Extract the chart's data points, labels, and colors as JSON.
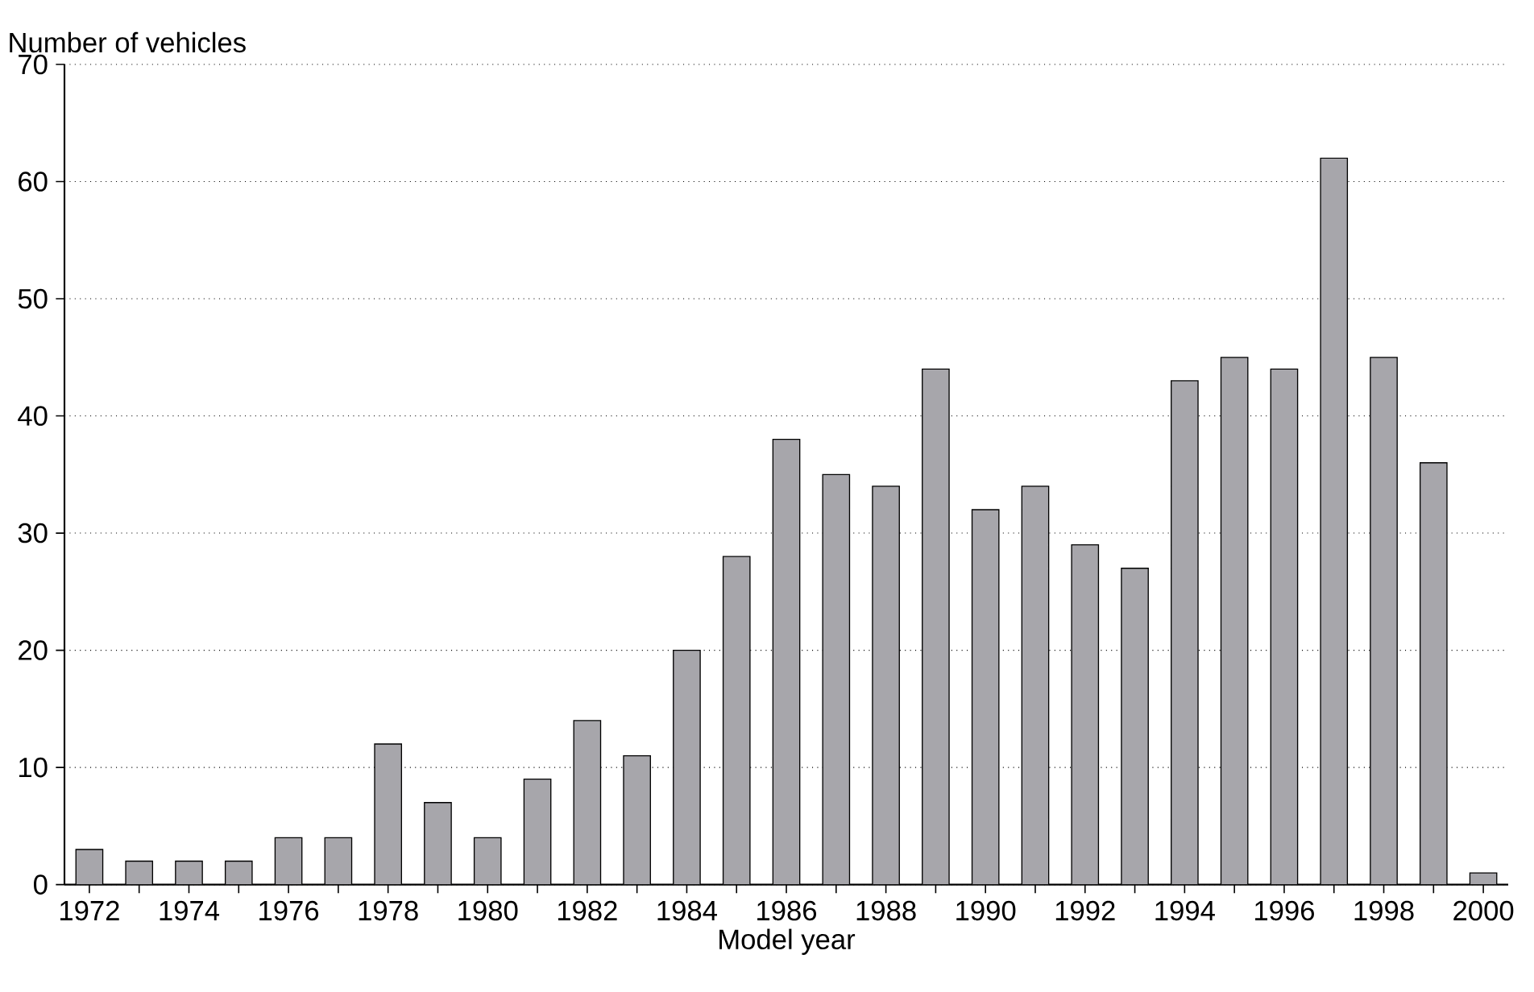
{
  "chart_data": {
    "type": "bar",
    "xlabel": "Model year",
    "ylabel": "Number of vehicles",
    "categories": [
      "1972",
      null,
      "1974",
      null,
      "1976",
      null,
      "1978",
      null,
      "1980",
      null,
      "1982",
      null,
      "1984",
      null,
      "1986",
      null,
      "1988",
      null,
      "1990",
      null,
      "1992",
      null,
      "1994",
      null,
      "1996",
      null,
      "1998",
      null,
      "2000"
    ],
    "values": [
      3,
      2,
      2,
      2,
      4,
      4,
      12,
      7,
      4,
      9,
      14,
      11,
      20,
      28,
      38,
      35,
      34,
      44,
      32,
      34,
      29,
      27,
      43,
      45,
      44,
      62,
      45,
      36,
      1
    ],
    "color": "#a7a6ab",
    "ylim": [
      0,
      70
    ],
    "yticks": [
      0,
      10,
      20,
      30,
      40,
      50,
      60,
      70
    ],
    "grid": "y"
  }
}
